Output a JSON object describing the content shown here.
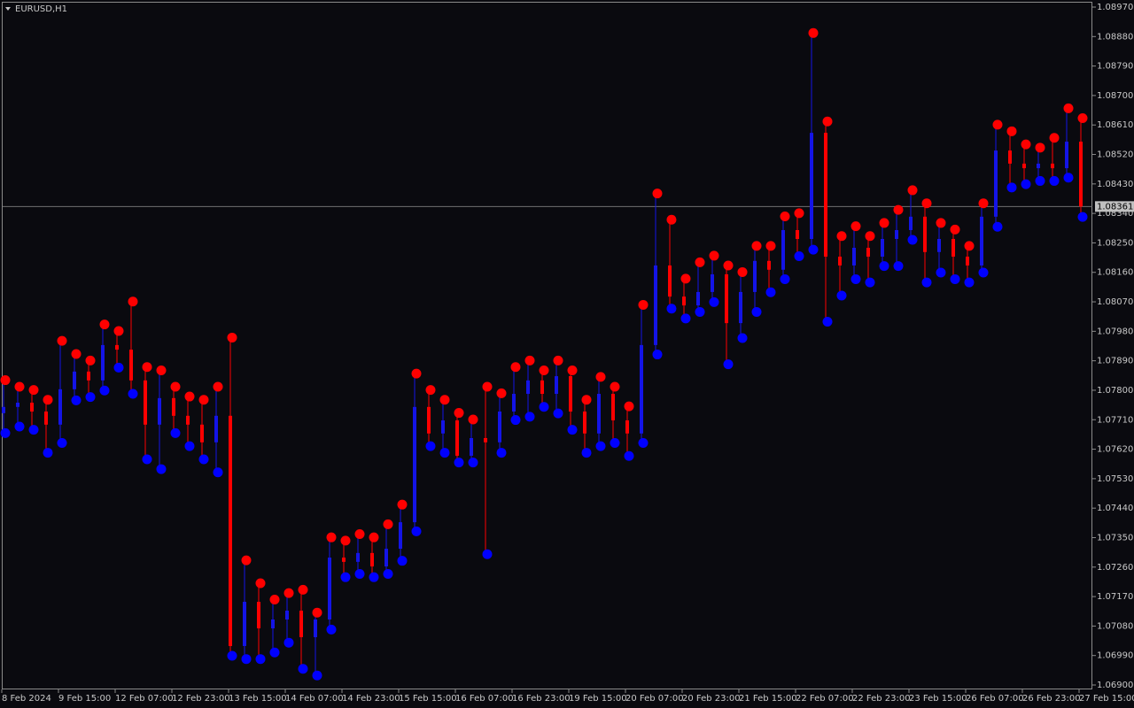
{
  "chart_data": {
    "type": "candlestick",
    "title": "EURUSD,H1",
    "categories": [
      "8 Feb 2024",
      null,
      null,
      null,
      "9 Feb 15:00",
      null,
      null,
      null,
      "12 Feb 07:00",
      null,
      null,
      null,
      "12 Feb 23:00",
      null,
      null,
      null,
      "13 Feb 15:00",
      null,
      null,
      null,
      "14 Feb 07:00",
      null,
      null,
      null,
      "14 Feb 23:00",
      null,
      null,
      null,
      "15 Feb 15:00",
      null,
      null,
      null,
      "16 Feb 07:00",
      null,
      null,
      null,
      "16 Feb 23:00",
      null,
      null,
      null,
      "19 Feb 15:00",
      null,
      null,
      null,
      "20 Feb 07:00",
      null,
      null,
      null,
      "20 Feb 23:00",
      null,
      null,
      null,
      "21 Feb 15:00",
      null,
      null,
      null,
      "22 Feb 07:00",
      null,
      null,
      null,
      "22 Feb 23:00",
      null,
      null,
      null,
      "23 Feb 15:00",
      null,
      null,
      null,
      "26 Feb 07:00",
      null,
      null,
      null,
      "26 Feb 23:00",
      null,
      null,
      null,
      "27 Feb 15:00"
    ],
    "open": [
      1.0773,
      1.07749,
      1.07762,
      1.07735,
      1.07695,
      1.07803,
      1.07857,
      1.0783,
      1.07938,
      1.07924,
      1.0783,
      1.07695,
      1.07776,
      1.07722,
      1.07695,
      1.07641,
      1.07722,
      1.07019,
      1.07154,
      1.07073,
      1.071,
      1.07127,
      1.07046,
      1.071,
      1.07289,
      1.07276,
      1.07303,
      1.07262,
      1.07316,
      1.07397,
      1.07749,
      1.07668,
      1.07708,
      1.076,
      1.07654,
      1.07641,
      1.07735,
      1.07789,
      1.0783,
      1.07789,
      1.07843,
      1.07735,
      1.07668,
      1.07789,
      1.07708,
      1.07668,
      1.07938,
      1.08181,
      1.08086,
      1.08059,
      1.081,
      1.08154,
      1.08005,
      1.081,
      1.08195,
      1.08168,
      1.08289,
      1.08262,
      1.08586,
      1.08208,
      1.08181,
      1.08235,
      1.08208,
      1.08262,
      1.08289,
      1.0833,
      1.08222,
      1.08262,
      1.08208,
      1.08181,
      1.0833,
      1.08532,
      1.08492,
      1.08478,
      1.08492,
      1.08478,
      1.08559
    ],
    "high": [
      1.0782,
      1.078,
      1.0779,
      1.0776,
      1.0794,
      1.079,
      1.0788,
      1.0799,
      1.0797,
      1.0806,
      1.0786,
      1.0785,
      1.078,
      1.0777,
      1.0776,
      1.078,
      1.0795,
      1.0727,
      1.072,
      1.0715,
      1.0717,
      1.0718,
      1.0711,
      1.0734,
      1.0733,
      1.0735,
      1.0734,
      1.0738,
      1.0744,
      1.0784,
      1.0779,
      1.0776,
      1.0772,
      1.077,
      1.078,
      1.0778,
      1.0786,
      1.0788,
      1.0785,
      1.0788,
      1.0785,
      1.0776,
      1.0783,
      1.078,
      1.0774,
      1.0805,
      1.0839,
      1.0831,
      1.0813,
      1.0818,
      1.082,
      1.0817,
      1.0815,
      1.0823,
      1.0823,
      1.0832,
      1.0833,
      1.0888,
      1.0861,
      1.0826,
      1.0829,
      1.0826,
      1.083,
      1.0834,
      1.084,
      1.0836,
      1.083,
      1.0828,
      1.0823,
      1.0836,
      1.086,
      1.0858,
      1.0854,
      1.0853,
      1.0856,
      1.0865,
      1.0862
    ],
    "low": [
      1.0768,
      1.077,
      1.0769,
      1.0762,
      1.0765,
      1.0778,
      1.0779,
      1.0781,
      1.0788,
      1.078,
      1.076,
      1.0757,
      1.0768,
      1.0764,
      1.076,
      1.0756,
      1.07,
      1.0699,
      1.0699,
      1.0701,
      1.0704,
      1.0696,
      1.0694,
      1.0708,
      1.0724,
      1.0725,
      1.0724,
      1.0725,
      1.0729,
      1.0738,
      1.0764,
      1.0762,
      1.0759,
      1.0759,
      1.0731,
      1.0762,
      1.0772,
      1.0773,
      1.0776,
      1.0774,
      1.0769,
      1.0762,
      1.0764,
      1.0765,
      1.0761,
      1.0765,
      1.0792,
      1.0806,
      1.0803,
      1.0805,
      1.0808,
      1.0789,
      1.0797,
      1.0805,
      1.0811,
      1.0815,
      1.0822,
      1.0824,
      1.0802,
      1.081,
      1.0815,
      1.0814,
      1.0819,
      1.0819,
      1.0827,
      1.0814,
      1.0817,
      1.0815,
      1.0814,
      1.0817,
      1.0831,
      1.0843,
      1.0844,
      1.0845,
      1.0845,
      1.0846,
      1.0834
    ],
    "close": [
      1.07749,
      1.07762,
      1.07735,
      1.07695,
      1.07803,
      1.07857,
      1.0783,
      1.07938,
      1.07924,
      1.0783,
      1.07695,
      1.07776,
      1.07722,
      1.07695,
      1.07641,
      1.07722,
      1.07019,
      1.07154,
      1.07073,
      1.071,
      1.07127,
      1.07046,
      1.071,
      1.07289,
      1.07276,
      1.07303,
      1.07262,
      1.07316,
      1.07397,
      1.07749,
      1.07668,
      1.07708,
      1.076,
      1.07654,
      1.07641,
      1.07735,
      1.07789,
      1.0783,
      1.07789,
      1.07843,
      1.07735,
      1.07668,
      1.07789,
      1.07708,
      1.07668,
      1.07938,
      1.08181,
      1.08086,
      1.08059,
      1.081,
      1.08154,
      1.08005,
      1.081,
      1.08195,
      1.08168,
      1.08289,
      1.08262,
      1.08586,
      1.08208,
      1.08181,
      1.08235,
      1.08208,
      1.08262,
      1.08289,
      1.0833,
      1.08222,
      1.08262,
      1.08208,
      1.08181,
      1.0833,
      1.08532,
      1.08492,
      1.08478,
      1.08492,
      1.08478,
      1.08559,
      1.08361
    ],
    "up_color": "#1414e6",
    "down_color": "#ff0000",
    "high_dot_color": "#ff0000",
    "low_dot_color": "#0000ff",
    "ylim": [
      1.069,
      1.0897
    ],
    "yticks": [
      {
        "value": 1.069,
        "label": "1.06900"
      },
      {
        "value": 1.0699,
        "label": "1.06990"
      },
      {
        "value": 1.0708,
        "label": "1.07080"
      },
      {
        "value": 1.0717,
        "label": "1.07170"
      },
      {
        "value": 1.0726,
        "label": "1.07260"
      },
      {
        "value": 1.0735,
        "label": "1.07350"
      },
      {
        "value": 1.0744,
        "label": "1.07440"
      },
      {
        "value": 1.0753,
        "label": "1.07530"
      },
      {
        "value": 1.0762,
        "label": "1.07620"
      },
      {
        "value": 1.0771,
        "label": "1.07710"
      },
      {
        "value": 1.078,
        "label": "1.07800"
      },
      {
        "value": 1.0789,
        "label": "1.07890"
      },
      {
        "value": 1.0798,
        "label": "1.07980"
      },
      {
        "value": 1.0807,
        "label": "1.08070"
      },
      {
        "value": 1.0816,
        "label": "1.08160"
      },
      {
        "value": 1.0825,
        "label": "1.08250"
      },
      {
        "value": 1.0834,
        "label": "1.08340"
      },
      {
        "value": 1.0843,
        "label": "1.08430"
      },
      {
        "value": 1.0852,
        "label": "1.08520"
      },
      {
        "value": 1.0861,
        "label": "1.08610"
      },
      {
        "value": 1.087,
        "label": "1.08700"
      },
      {
        "value": 1.0879,
        "label": "1.08790"
      },
      {
        "value": 1.0888,
        "label": "1.08880"
      },
      {
        "value": 1.0897,
        "label": "1.08970"
      }
    ],
    "current_price": {
      "value": 1.08361,
      "label": "1.08361"
    }
  }
}
